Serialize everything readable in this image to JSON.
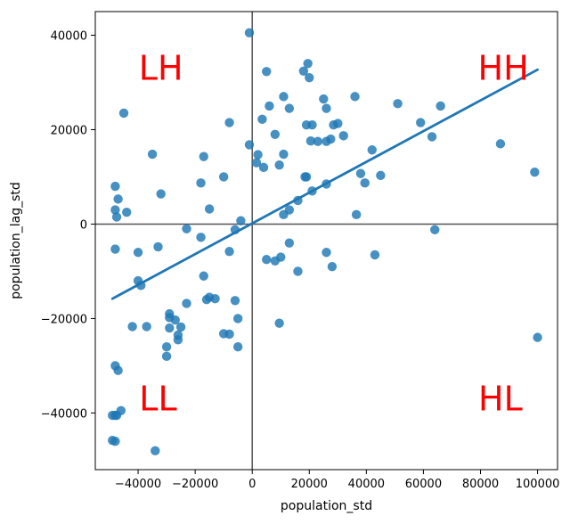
{
  "chart_data": {
    "type": "scatter",
    "title": "",
    "xlabel": "population_std",
    "ylabel": "population_lag_std",
    "xlim": [
      -55000,
      107000
    ],
    "ylim": [
      -52000,
      45000
    ],
    "xticks": [
      -40000,
      -20000,
      0,
      20000,
      40000,
      60000,
      80000,
      100000
    ],
    "yticks": [
      -40000,
      -20000,
      0,
      20000,
      40000
    ],
    "point_color": "#1f77b4",
    "reference_line_color": "#555555",
    "quadrant_labels": [
      {
        "text": "HH",
        "x": 88000,
        "y": 32500,
        "color": "#ff0000"
      },
      {
        "text": "LH",
        "x": -32000,
        "y": 32500,
        "color": "#ff0000"
      },
      {
        "text": "LL",
        "x": -33000,
        "y": -37500,
        "color": "#ff0000"
      },
      {
        "text": "HL",
        "x": 87000,
        "y": -37500,
        "color": "#ff0000"
      }
    ],
    "regression_line": {
      "x1": -49000,
      "y1": -15800,
      "x2": 100000,
      "y2": 32700
    },
    "points": [
      [
        -1000,
        40500
      ],
      [
        5000,
        32300
      ],
      [
        18000,
        32400
      ],
      [
        19500,
        34000
      ],
      [
        20000,
        31000
      ],
      [
        -45000,
        23500
      ],
      [
        -8000,
        21500
      ],
      [
        3500,
        22200
      ],
      [
        6000,
        25000
      ],
      [
        11000,
        27000
      ],
      [
        13000,
        24500
      ],
      [
        25000,
        26500
      ],
      [
        26000,
        24500
      ],
      [
        36000,
        27000
      ],
      [
        51000,
        25500
      ],
      [
        66000,
        25000
      ],
      [
        59000,
        21500
      ],
      [
        63000,
        18500
      ],
      [
        87000,
        17000
      ],
      [
        99000,
        11000
      ],
      [
        -1000,
        16800
      ],
      [
        2000,
        14700
      ],
      [
        1500,
        13000
      ],
      [
        4000,
        12000
      ],
      [
        8000,
        19000
      ],
      [
        9500,
        12500
      ],
      [
        11000,
        14800
      ],
      [
        19000,
        21000
      ],
      [
        21000,
        21000
      ],
      [
        23000,
        17500
      ],
      [
        20500,
        17600
      ],
      [
        26000,
        17500
      ],
      [
        27500,
        18000
      ],
      [
        28500,
        21000
      ],
      [
        30000,
        21300
      ],
      [
        32000,
        18700
      ],
      [
        42000,
        15700
      ],
      [
        38000,
        10700
      ],
      [
        39500,
        8700
      ],
      [
        45000,
        10300
      ],
      [
        36500,
        2000
      ],
      [
        19000,
        10000
      ],
      [
        18500,
        10000
      ],
      [
        21000,
        7000
      ],
      [
        26000,
        8500
      ],
      [
        16000,
        5000
      ],
      [
        13000,
        3000
      ],
      [
        11000,
        2000
      ],
      [
        -35000,
        14800
      ],
      [
        -17000,
        14300
      ],
      [
        -32000,
        6400
      ],
      [
        -18000,
        8700
      ],
      [
        -10000,
        10000
      ],
      [
        -15000,
        3200
      ],
      [
        -48000,
        8000
      ],
      [
        -47000,
        5300
      ],
      [
        -48000,
        3000
      ],
      [
        -44000,
        2500
      ],
      [
        -47500,
        1500
      ],
      [
        -4000,
        700
      ],
      [
        -6000,
        -1200
      ],
      [
        -23000,
        -1000
      ],
      [
        -18000,
        -2800
      ],
      [
        -48000,
        -5300
      ],
      [
        -40000,
        -6000
      ],
      [
        -33000,
        -4800
      ],
      [
        -8000,
        -5800
      ],
      [
        13000,
        -4000
      ],
      [
        5000,
        -7500
      ],
      [
        8000,
        -7800
      ],
      [
        10000,
        -7000
      ],
      [
        16000,
        -10000
      ],
      [
        26000,
        -6000
      ],
      [
        28000,
        -9000
      ],
      [
        43000,
        -6500
      ],
      [
        64000,
        -1200
      ],
      [
        100000,
        -24000
      ],
      [
        -40000,
        -12000
      ],
      [
        -39000,
        -13000
      ],
      [
        -17000,
        -11000
      ],
      [
        -15000,
        -15500
      ],
      [
        -13000,
        -15800
      ],
      [
        -16000,
        -16000
      ],
      [
        -23000,
        -16800
      ],
      [
        -6000,
        -16200
      ],
      [
        -29000,
        -19000
      ],
      [
        -29000,
        -19800
      ],
      [
        -27000,
        -20300
      ],
      [
        -5000,
        -20000
      ],
      [
        -42000,
        -21700
      ],
      [
        -37000,
        -21700
      ],
      [
        -29000,
        -22000
      ],
      [
        -25000,
        -21800
      ],
      [
        -26000,
        -23500
      ],
      [
        -10000,
        -23200
      ],
      [
        -8000,
        -23300
      ],
      [
        -26000,
        -24500
      ],
      [
        -30000,
        -26000
      ],
      [
        -5000,
        -26000
      ],
      [
        9500,
        -21000
      ],
      [
        -30000,
        -28000
      ],
      [
        -48000,
        -30000
      ],
      [
        -47000,
        -31000
      ],
      [
        -46000,
        -39500
      ],
      [
        -49000,
        -40500
      ],
      [
        -48000,
        -40500
      ],
      [
        -47500,
        -40500
      ],
      [
        -49000,
        -45800
      ],
      [
        -48000,
        -46000
      ],
      [
        -34000,
        -48000
      ]
    ]
  }
}
